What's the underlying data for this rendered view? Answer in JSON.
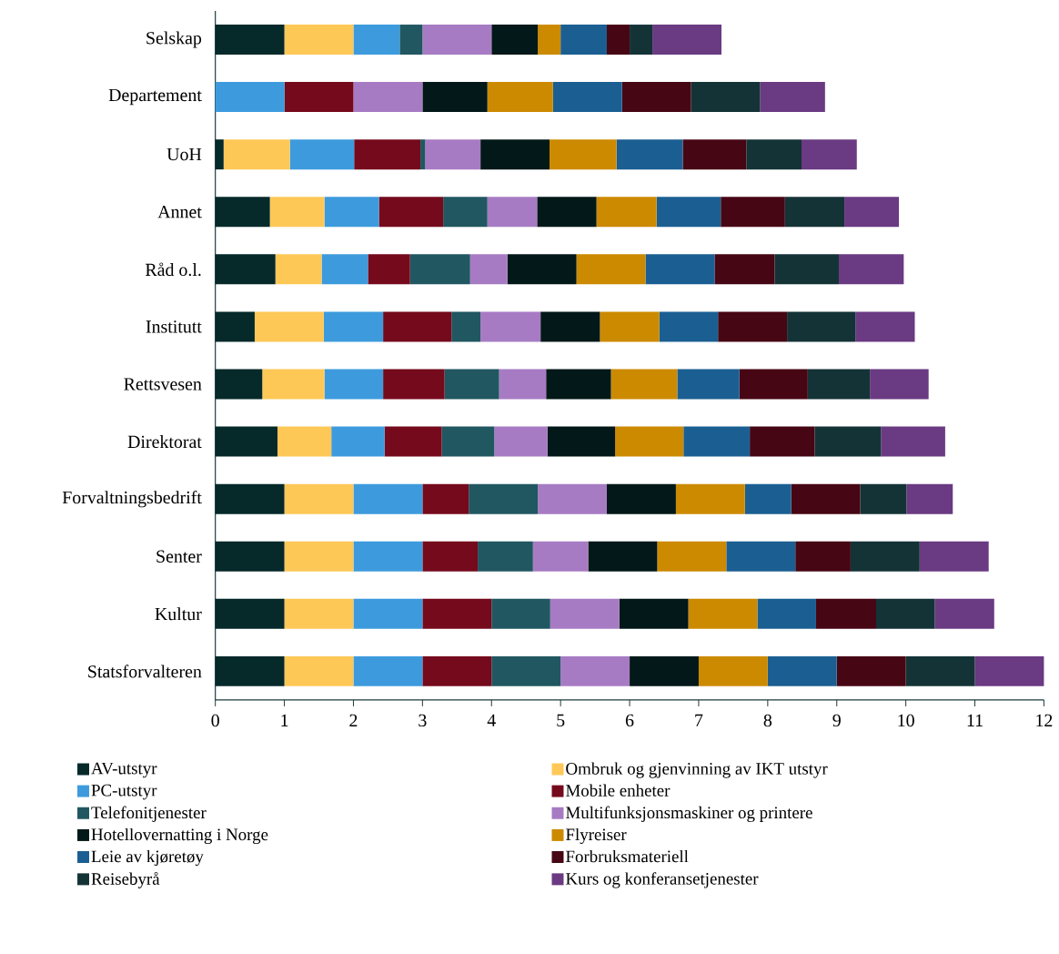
{
  "chart_data": {
    "type": "bar",
    "orientation": "horizontal",
    "stacked": true,
    "legend": "bottom",
    "categories": [
      "Selskap",
      "Departement",
      "UoH",
      "Annet",
      "Råd o.l.",
      "Institutt",
      "Rettsvesen",
      "Direktorat",
      "Forvaltningsbedrift",
      "Senter",
      "Kultur",
      "Statsforvalteren"
    ],
    "xlim": [
      0,
      12
    ],
    "xticks": [
      0,
      1,
      2,
      3,
      4,
      5,
      6,
      7,
      8,
      9,
      10,
      11,
      12
    ],
    "series": [
      {
        "name": "AV-utstyr",
        "color": "#06292a",
        "values": [
          1.0,
          0,
          0.12,
          0.79,
          0.87,
          0.57,
          0.68,
          0.9,
          1.0,
          1.0,
          1.0,
          1.0
        ]
      },
      {
        "name": "Ombruk og gjenvinning av IKT utstyr",
        "color": "#fec857",
        "values": [
          1.0,
          0,
          0.96,
          0.79,
          0.67,
          1.0,
          0.9,
          0.78,
          1.0,
          1.0,
          1.0,
          1.0
        ]
      },
      {
        "name": "PC-utstyr",
        "color": "#3d9bdd",
        "values": [
          0.67,
          1.0,
          0.93,
          0.79,
          0.67,
          0.86,
          0.85,
          0.77,
          1.0,
          1.0,
          1.0,
          1.0
        ]
      },
      {
        "name": "Mobile enheter",
        "color": "#750a1d",
        "values": [
          0,
          1.0,
          0.96,
          0.93,
          0.61,
          0.99,
          0.89,
          0.83,
          0.67,
          0.8,
          1.0,
          1.0
        ]
      },
      {
        "name": "Telefonitjenester",
        "color": "#215761",
        "values": [
          0.33,
          0,
          0.07,
          0.64,
          0.87,
          0.42,
          0.79,
          0.76,
          1.0,
          0.8,
          0.85,
          1.0
        ]
      },
      {
        "name": "Multifunksjonsmaskiner og printere",
        "color": "#a77bc3",
        "values": [
          1.0,
          1.0,
          0.8,
          0.72,
          0.54,
          0.87,
          0.68,
          0.77,
          1.0,
          0.8,
          1.0,
          1.0
        ]
      },
      {
        "name": "Hotellovernatting i Norge",
        "color": "#031818",
        "values": [
          0.67,
          0.94,
          1.0,
          0.86,
          1.0,
          0.86,
          0.94,
          0.98,
          1.0,
          1.0,
          1.0,
          1.0
        ]
      },
      {
        "name": "Flyreiser",
        "color": "#cc8a00",
        "values": [
          0.33,
          0.95,
          0.97,
          0.87,
          1.0,
          0.86,
          0.96,
          0.99,
          1.0,
          1.0,
          1.0,
          1.0
        ]
      },
      {
        "name": "Leie av kjøretøy",
        "color": "#1b5f92",
        "values": [
          0.67,
          1.0,
          0.96,
          0.93,
          1.0,
          0.85,
          0.9,
          0.96,
          0.67,
          1.0,
          0.85,
          1.0
        ]
      },
      {
        "name": "Forbruksmateriell",
        "color": "#470614",
        "values": [
          0.33,
          1.0,
          0.92,
          0.93,
          0.87,
          1.0,
          0.99,
          0.94,
          1.0,
          0.8,
          0.87,
          1.0
        ]
      },
      {
        "name": "Reisebyrå",
        "color": "#143337",
        "values": [
          0.33,
          1.0,
          0.8,
          0.86,
          0.93,
          0.99,
          0.9,
          0.96,
          0.67,
          1.0,
          0.85,
          1.0
        ]
      },
      {
        "name": "Kurs og konferansetjenester",
        "color": "#6a3a82",
        "values": [
          1.0,
          0.94,
          0.8,
          0.79,
          0.94,
          0.86,
          0.85,
          0.93,
          0.67,
          1.0,
          0.86,
          1.0
        ]
      }
    ]
  }
}
